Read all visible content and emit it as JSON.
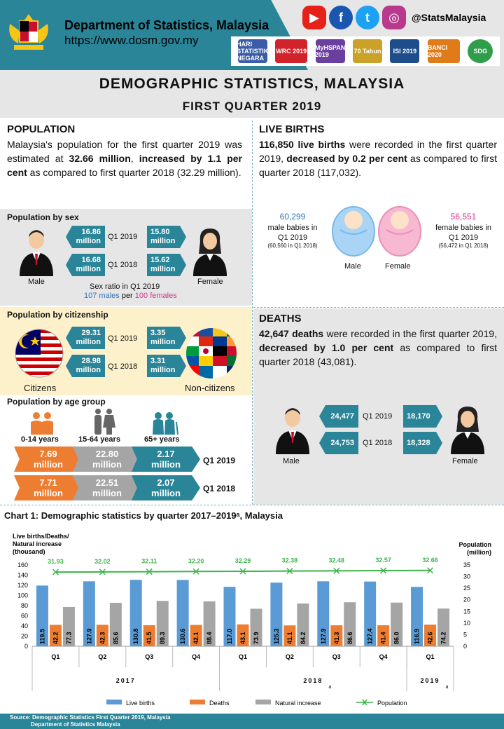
{
  "header": {
    "dept_name": "Department of Statistics, Malaysia",
    "url": "https://www.dosm.gov.my",
    "social_handle": "@StatsMalaysia",
    "social_icons": [
      "youtube-icon",
      "facebook-icon",
      "twitter-icon",
      "instagram-icon"
    ],
    "logos": [
      "HARI STATISTIK NEGARA",
      "WRC 2019",
      "MyHSPAN 2019",
      "70 Tahun",
      "ISI 2019",
      "BANCI 2020",
      "SDG"
    ]
  },
  "title": "DEMOGRAPHIC STATISTICS, MALAYSIA",
  "subtitle": "FIRST QUARTER 2019",
  "population": {
    "heading": "POPULATION",
    "p1": "Malaysia's population for the first quarter 2019 was estimated at ",
    "b1": "32.66 million",
    "p2": ", ",
    "b2": "increased by 1.1 per cent",
    "p3": " as compared to first quarter 2018 (32.29 million).",
    "by_sex": {
      "heading": "Population by sex",
      "male_q1_2019": "16.86",
      "male_q1_2018": "16.68",
      "female_q1_2019": "15.80",
      "female_q1_2018": "15.62",
      "unit": "million",
      "q1_2019": "Q1 2019",
      "q1_2018": "Q1 2018",
      "male_label": "Male",
      "female_label": "Female",
      "ratio_line1": "Sex ratio in Q1 2019",
      "ratio_males": "107 males",
      "ratio_per": " per ",
      "ratio_females": "100 females"
    },
    "by_citizenship": {
      "heading": "Population by citizenship",
      "citizens_q1_2019": "29.31",
      "citizens_q1_2018": "28.98",
      "noncitizens_q1_2019": "3.35",
      "noncitizens_q1_2018": "3.31",
      "unit": "million",
      "citizens_label": "Citizens",
      "noncitizens_label": "Non-citizens"
    },
    "by_age": {
      "heading": "Population by age group",
      "groups": [
        "0-14 years",
        "15-64 years",
        "65+ years"
      ],
      "q1_2019": [
        "7.69",
        "22.80",
        "2.17"
      ],
      "q1_2018": [
        "7.71",
        "22.51",
        "2.07"
      ],
      "unit": "million",
      "colors": [
        "#ed7d31",
        "#a5a5a5",
        "#2a8599"
      ]
    }
  },
  "live_births": {
    "heading": "LIVE BIRTHS",
    "b1": "116,850 live births",
    "p1": " were recorded in the first quarter 2019, ",
    "b2": "decreased by 0.2 per cent",
    "p2": " as compared to first quarter 2018 (117,032).",
    "male_value": "60,299",
    "male_text": "male babies in Q1 2019",
    "male_prev": "(60,560 in Q1 2018)",
    "female_value": "56,551",
    "female_text": "female babies in Q1 2019",
    "female_prev": "(56,472 in Q1 2018)",
    "male_label": "Male",
    "female_label": "Female"
  },
  "deaths": {
    "heading": "DEATHS",
    "b1": "42,647 deaths",
    "p1": " were recorded in the first quarter 2019, ",
    "b2": "decreased by 1.0 per cent",
    "p2": " as compared to first quarter 2018 (43,081).",
    "male_q1_2019": "24,477",
    "male_q1_2018": "24,753",
    "female_q1_2019": "18,170",
    "female_q1_2018": "18,328",
    "male_label": "Male",
    "female_label": "Female"
  },
  "chart_title": "Chart 1: Demographic statistics by quarter 2017–2019ᵃ,  Malaysia",
  "chart_data": {
    "type": "bar",
    "categories": [
      "Q1",
      "Q2",
      "Q3",
      "Q4",
      "Q1",
      "Q2",
      "Q3",
      "Q4",
      "Q1"
    ],
    "year_groups": [
      {
        "label": "2017",
        "start": 0,
        "end": 3,
        "note": ""
      },
      {
        "label": "2018",
        "start": 4,
        "end": 7,
        "note": "a"
      },
      {
        "label": "2019",
        "start": 8,
        "end": 8,
        "note": "a"
      }
    ],
    "ylabel": "Live births/Deaths/ Natural increase (thousand)",
    "ylabel_lines": [
      "Live births/Deaths/",
      "Natural increase",
      "(thousand)"
    ],
    "y2label_lines": [
      "Population",
      "(million)"
    ],
    "ylim": [
      0,
      160
    ],
    "yticks": [
      0,
      20,
      40,
      60,
      80,
      100,
      120,
      140,
      160
    ],
    "y2lim": [
      0,
      35
    ],
    "y2ticks": [
      0,
      5,
      10,
      15,
      20,
      25,
      30,
      35
    ],
    "series": [
      {
        "name": "Live births",
        "color": "#5b9bd5",
        "values": [
          119.5,
          127.9,
          130.8,
          130.6,
          117.0,
          125.3,
          127.9,
          127.4,
          116.9
        ]
      },
      {
        "name": "Deaths",
        "color": "#ed7d31",
        "values": [
          42.2,
          42.3,
          41.5,
          42.1,
          43.1,
          41.1,
          41.3,
          41.4,
          42.6
        ]
      },
      {
        "name": "Natural increase",
        "color": "#a5a5a5",
        "values": [
          77.3,
          85.6,
          89.3,
          88.4,
          73.9,
          84.2,
          86.6,
          86.0,
          74.2
        ]
      }
    ],
    "line_series": {
      "name": "Population",
      "color": "#3cb44b",
      "axis": "right",
      "values": [
        31.93,
        32.02,
        32.11,
        32.2,
        32.29,
        32.38,
        32.48,
        32.57,
        32.66
      ]
    },
    "grid": false,
    "legend": "bottom"
  },
  "footer": {
    "line1": "Source: Demographic Statistics First Quarter 2019, Malaysia",
    "line2": "Department of Statistics Malaysia"
  }
}
